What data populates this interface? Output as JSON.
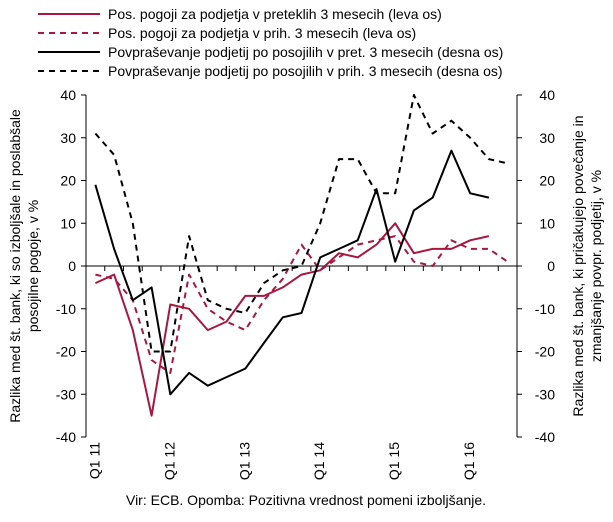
{
  "chart_data": {
    "type": "line",
    "x": [
      "Q1 11",
      "Q2 11",
      "Q3 11",
      "Q4 11",
      "Q1 12",
      "Q2 12",
      "Q3 12",
      "Q4 12",
      "Q1 13",
      "Q2 13",
      "Q3 13",
      "Q4 13",
      "Q1 14",
      "Q2 14",
      "Q3 14",
      "Q4 14",
      "Q1 15",
      "Q2 15",
      "Q3 15",
      "Q4 15",
      "Q1 16",
      "Q2 16",
      "Q3 16"
    ],
    "x_tick_labels": [
      "Q1 11",
      "Q1 12",
      "Q1 13",
      "Q1 14",
      "Q1 15",
      "Q1 16"
    ],
    "ylabel": "Razlika med št. bank, ki so izboljšale in poslabšale posojilne pogoje, v %",
    "y2label": "Razlika med št. bank, ki pričakujejo povečanje in zmanjšanje povpr. podjetij, v %",
    "ylim": [
      -40,
      40
    ],
    "y2lim": [
      -40,
      40
    ],
    "yticks": [
      -40,
      -30,
      -20,
      -10,
      0,
      10,
      20,
      30,
      40
    ],
    "grid": false,
    "legend_position": "top",
    "series": [
      {
        "name": "Pos. pogoji za podjetja v preteklih 3 mesecih (leva os)",
        "axis": "left",
        "color": "#a8173f",
        "dash": "solid",
        "values": [
          -4,
          -2,
          -15,
          -35,
          -9,
          -10,
          -15,
          -13,
          -7,
          -7,
          -5,
          -2,
          -1,
          3,
          2,
          5,
          10,
          3,
          4,
          4,
          6,
          7,
          null
        ]
      },
      {
        "name": "Pos. pogoji za podjetja v prih. 3 mesecih (leva os)",
        "axis": "left",
        "color": "#a8173f",
        "dash": "dashed",
        "values": [
          -2,
          -3,
          -8,
          -22,
          -25,
          -2,
          -10,
          -13,
          -15,
          -8,
          -3,
          5,
          -1,
          2,
          5,
          6,
          7,
          1,
          0,
          6,
          4,
          4,
          1
        ]
      },
      {
        "name": "Povpraševanje podjetij po posojilih v pret. 3 mesecih (desna os)",
        "axis": "right",
        "color": "#000000",
        "dash": "solid",
        "values": [
          19,
          4,
          -8,
          -5,
          -30,
          -25,
          -28,
          -26,
          -24,
          -18,
          -12,
          -11,
          2,
          4,
          6,
          18,
          1,
          13,
          16,
          27,
          17,
          16,
          null
        ]
      },
      {
        "name": "Povpraševanje podjetij po posojilih v prih. 3 mesecih (desna os)",
        "axis": "right",
        "color": "#000000",
        "dash": "dashed",
        "values": [
          31,
          26,
          10,
          -20,
          -20,
          7,
          -8,
          -10,
          -11,
          -4,
          -1,
          0,
          10,
          25,
          25,
          17,
          17,
          40,
          31,
          34,
          30,
          25,
          24
        ]
      }
    ]
  },
  "note": "Vir: ECB. Opomba: Pozitivna vrednost pomeni izboljšanje."
}
